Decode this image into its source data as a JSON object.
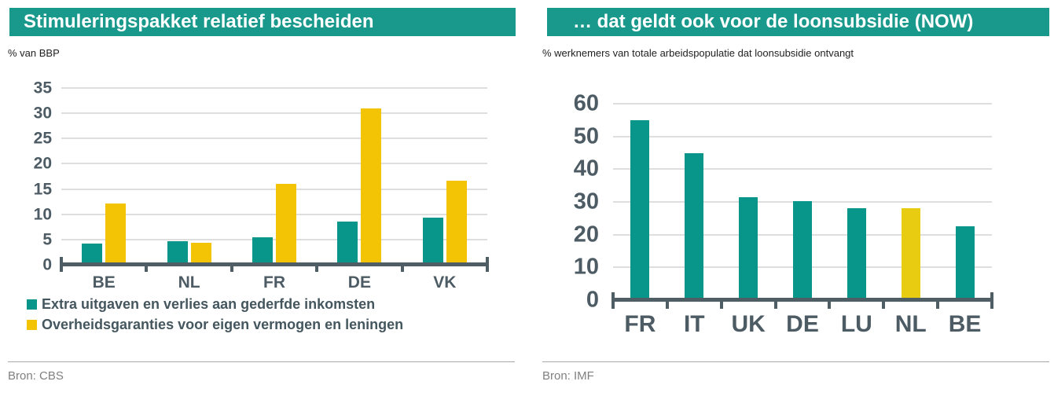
{
  "colors": {
    "banner_teal": "#19998C",
    "bar_teal": "#08968A",
    "bar_gold": "#F2C405",
    "bar_yellow_nl": "#E7CC12",
    "axis_gray": "#4F5D64",
    "label_gray": "#4D5C64",
    "source_gray": "#808080",
    "grid_gray": "#DEDEDE"
  },
  "chart_data": [
    {
      "type": "bar",
      "title": "Stimuleringspakket relatief bescheiden",
      "subtitle": "% van BBP",
      "categories": [
        "BE",
        "NL",
        "FR",
        "DE",
        "VK"
      ],
      "series": [
        {
          "name": "Extra uitgaven en verlies aan gederfde inkomsten",
          "color": "#08968A",
          "values": [
            4.2,
            4.7,
            5.4,
            8.5,
            9.3
          ]
        },
        {
          "name": "Overheidsgaranties voor eigen vermogen en leningen",
          "color": "#F2C405",
          "values": [
            12.2,
            4.3,
            16.0,
            31.0,
            16.7
          ]
        }
      ],
      "ylim": [
        0,
        35
      ],
      "yticks": [
        0,
        5,
        10,
        15,
        20,
        25,
        30,
        35
      ],
      "grid": true,
      "legend_position": "bottom-left",
      "source": "Bron: CBS"
    },
    {
      "type": "bar",
      "title": "… dat geldt ook voor de loonsubsidie (NOW)",
      "subtitle": "% werknemers van totale arbeidspopulatie dat loonsubsidie ontvangt",
      "categories": [
        "FR",
        "IT",
        "UK",
        "DE",
        "LU",
        "NL",
        "BE"
      ],
      "series": [
        {
          "color": "#08968A",
          "bar_colors": [
            "#08968A",
            "#08968A",
            "#08968A",
            "#08968A",
            "#08968A",
            "#E7CC12",
            "#08968A"
          ],
          "values": [
            55,
            45,
            31.4,
            30.3,
            28,
            28,
            22.5
          ]
        }
      ],
      "ylim": [
        0,
        60
      ],
      "yticks": [
        0,
        10,
        20,
        30,
        40,
        50,
        60
      ],
      "grid": true,
      "legend_position": "none",
      "source": "Bron: IMF"
    }
  ]
}
